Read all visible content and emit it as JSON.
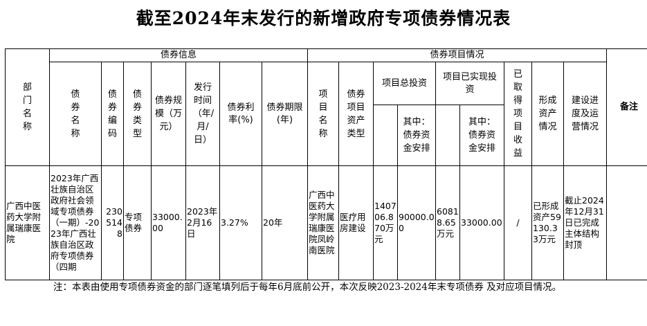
{
  "title": "截至2024年末发行的新增政府专项债券情况表",
  "header": {
    "bond_info_group": "债券信息",
    "project_info_group": "债券项目情况",
    "department": "部门名称",
    "bond_name": "债券名称",
    "bond_code": "债券编码",
    "bond_type": "债券类型",
    "bond_scale": "债券规模（万元）",
    "issue_time": "发行时间（年/月/日）",
    "interest_rate": "债券利率(%)",
    "bond_term": "债券期限(年)",
    "project_name": "项目名称",
    "asset_type": "债券项目资产类型",
    "total_investment": "项目总投资",
    "total_investment_bond": "其中：债券资金安排",
    "realized_investment": "项目已实现投资",
    "realized_investment_bond": "其中：债券资金安排",
    "project_revenue": "已取得项目收益",
    "assets_formed": "形成资产情况",
    "progress": "建设进度及运营情况",
    "remarks": "备注"
  },
  "row": {
    "department": "广西中医药大学附属瑞康医院",
    "bond_name": "2023年广西壮族自治区政府社会领域专项债券（一期）-2023年广西壮族自治区政府专项债券（四期",
    "bond_code": "2305148",
    "bond_type": "专项债券",
    "bond_scale": "33000.00",
    "issue_time": "2023年2月16日",
    "interest_rate": "3.27%",
    "bond_term": "20年",
    "project_name": "广西中医药大学附属瑞康医院凤岭南医院",
    "asset_type": "医疗用房建设",
    "total_investment": "140706.870万元",
    "total_investment_bond": "90000.00",
    "realized_investment": "60818.65万元",
    "realized_investment_bond": "33000.00",
    "project_revenue": "/",
    "assets_formed": "已形成资产59130.33万元",
    "progress": "截止2024年12月31日已完成主体结构封顶",
    "remarks": ""
  },
  "note": "注：本表由使用专项债券资金的部门逐笔填列后于每年6月底前公开，本次反映2023-2024年末专项债券 及对应项目情况。"
}
